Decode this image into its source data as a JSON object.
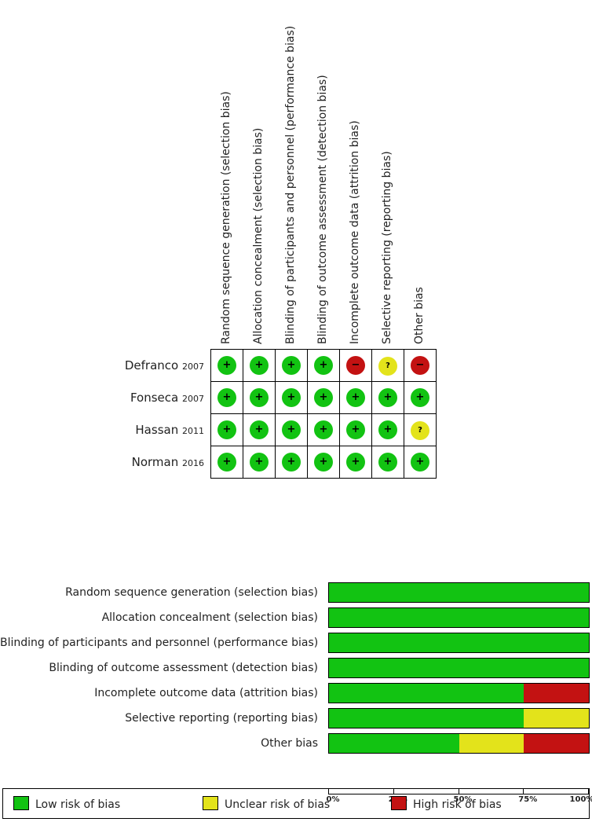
{
  "chart_data": [
    {
      "type": "table",
      "domains": [
        "Random sequence generation (selection bias)",
        "Allocation concealment (selection bias)",
        "Blinding of participants and personnel (performance bias)",
        "Blinding of outcome assessment (detection bias)",
        "Incomplete outcome data (attrition bias)",
        "Selective reporting (reporting bias)",
        "Other bias"
      ],
      "studies": [
        {
          "name": "Defranco",
          "year": "2007",
          "judgements": [
            "low",
            "low",
            "low",
            "low",
            "high",
            "unclear",
            "high"
          ]
        },
        {
          "name": "Fonseca",
          "year": "2007",
          "judgements": [
            "low",
            "low",
            "low",
            "low",
            "low",
            "low",
            "low"
          ]
        },
        {
          "name": "Hassan",
          "year": "2011",
          "judgements": [
            "low",
            "low",
            "low",
            "low",
            "low",
            "low",
            "unclear"
          ]
        },
        {
          "name": "Norman",
          "year": "2016",
          "judgements": [
            "low",
            "low",
            "low",
            "low",
            "low",
            "low",
            "low"
          ]
        }
      ],
      "symbols": {
        "low": "+",
        "unclear": "?",
        "high": "−"
      }
    },
    {
      "type": "bar",
      "stacked": true,
      "orientation": "horizontal",
      "categories": [
        "Random sequence generation (selection bias)",
        "Allocation concealment (selection bias)",
        "Blinding of participants and personnel (performance bias)",
        "Blinding of outcome assessment (detection bias)",
        "Incomplete outcome data (attrition bias)",
        "Selective reporting (reporting bias)",
        "Other bias"
      ],
      "series": [
        {
          "name": "Low risk of bias",
          "key": "low",
          "values": [
            100,
            100,
            100,
            100,
            75,
            75,
            50
          ]
        },
        {
          "name": "Unclear risk of bias",
          "key": "unclear",
          "values": [
            0,
            0,
            0,
            0,
            0,
            25,
            25
          ]
        },
        {
          "name": "High risk of bias",
          "key": "high",
          "values": [
            0,
            0,
            0,
            0,
            25,
            0,
            25
          ]
        }
      ],
      "xlim": [
        0,
        100
      ],
      "xticks": [
        "0%",
        "25%",
        "50%",
        "75%",
        "100%"
      ],
      "legend_position": "bottom"
    }
  ],
  "colors": {
    "low": "#12c312",
    "unclear": "#e3e31b",
    "high": "#c31212"
  }
}
